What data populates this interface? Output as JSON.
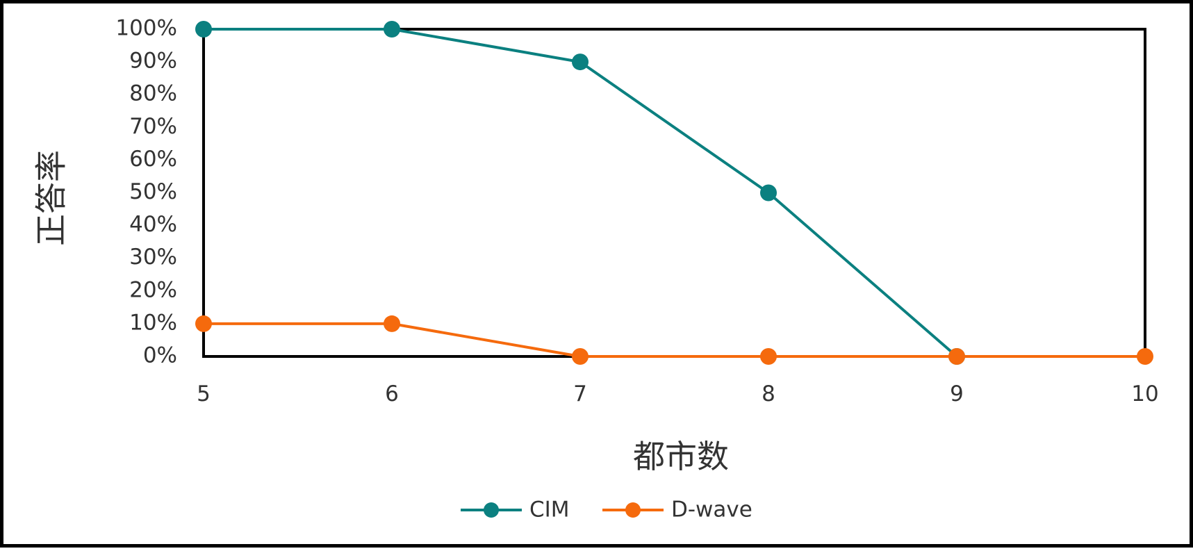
{
  "chart_data": {
    "type": "line",
    "title": "",
    "xlabel": "都市数",
    "ylabel": "正答率",
    "x": [
      5,
      6,
      7,
      8,
      9,
      10
    ],
    "xlim": [
      5,
      10
    ],
    "ylim": [
      0,
      100
    ],
    "y_ticks": [
      "0%",
      "10%",
      "20%",
      "30%",
      "40%",
      "50%",
      "60%",
      "70%",
      "80%",
      "90%",
      "100%"
    ],
    "x_ticks": [
      "5",
      "6",
      "7",
      "8",
      "9",
      "10"
    ],
    "grid": false,
    "legend_position": "bottom",
    "series": [
      {
        "name": "CIM",
        "color": "#0b8080",
        "x": [
          5,
          6,
          7,
          8,
          9
        ],
        "values": [
          100,
          100,
          90,
          50,
          0
        ]
      },
      {
        "name": "D-wave",
        "color": "#f56a0d",
        "x": [
          5,
          6,
          7,
          8,
          9,
          10
        ],
        "values": [
          10,
          10,
          0,
          0,
          0,
          0
        ]
      }
    ]
  }
}
